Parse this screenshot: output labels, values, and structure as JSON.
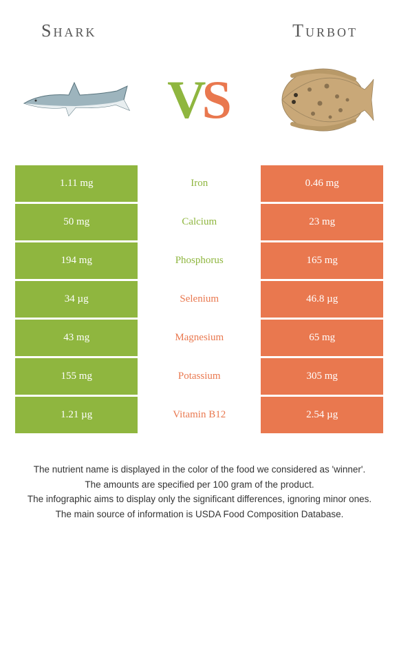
{
  "colors": {
    "shark": "#8fb63f",
    "turbot": "#e9784f",
    "shark_dark": "#6a7f5c",
    "turbot_body": "#c9a878",
    "turbot_spot": "#8a7250"
  },
  "header": {
    "left": "Shark",
    "right": "Turbot"
  },
  "vs": {
    "v": "V",
    "s": "S"
  },
  "rows": [
    {
      "left": "1.11 mg",
      "label": "Iron",
      "right": "0.46 mg",
      "winner": "shark"
    },
    {
      "left": "50 mg",
      "label": "Calcium",
      "right": "23 mg",
      "winner": "shark"
    },
    {
      "left": "194 mg",
      "label": "Phosphorus",
      "right": "165 mg",
      "winner": "shark"
    },
    {
      "left": "34 µg",
      "label": "Selenium",
      "right": "46.8 µg",
      "winner": "turbot"
    },
    {
      "left": "43 mg",
      "label": "Magnesium",
      "right": "65 mg",
      "winner": "turbot"
    },
    {
      "left": "155 mg",
      "label": "Potassium",
      "right": "305 mg",
      "winner": "turbot"
    },
    {
      "left": "1.21 µg",
      "label": "Vitamin B12",
      "right": "2.54 µg",
      "winner": "turbot"
    }
  ],
  "footer": {
    "line1": "The nutrient name is displayed in the color of the food we considered as 'winner'.",
    "line2": "The amounts are specified per 100 gram of the product.",
    "line3": "The infographic aims to display only the significant differences, ignoring minor ones.",
    "line4": "The main source of information is USDA Food Composition Database."
  }
}
